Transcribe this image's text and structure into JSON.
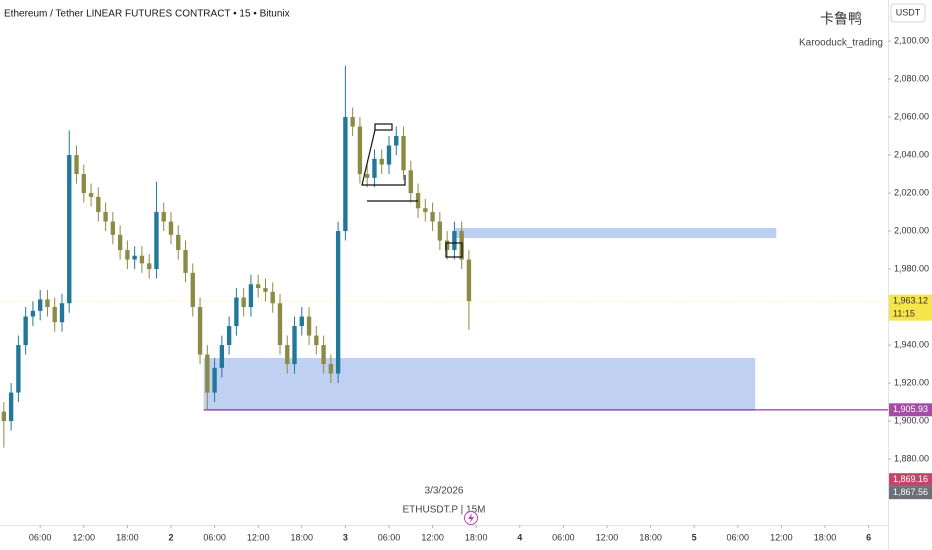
{
  "chart_data": {
    "type": "candlestick",
    "title": "Ethereum / Tether LINEAR FUTURES CONTRACT • 15 • Bitunix",
    "currency": "USDT",
    "watermark": {
      "symbol": "卡鲁鸭",
      "author": "Karooduck_trading"
    },
    "footer": {
      "date": "3/3/2026",
      "symbol": "ETHUSDT.P | 15M"
    },
    "up_color": "#22789a",
    "down_color": "#8b8b45",
    "x": [
      -23,
      -22,
      -21,
      -20,
      -19,
      -18,
      -17,
      -16,
      -15,
      -14,
      -13,
      -12,
      -11,
      -10,
      -9,
      -8,
      -7,
      -6,
      -5,
      -4,
      -3,
      -2,
      -1,
      0,
      1,
      2,
      3,
      4,
      5,
      6,
      7,
      8,
      9,
      10,
      11,
      12,
      13,
      14,
      15,
      16,
      17,
      18,
      19,
      20,
      21,
      22,
      23,
      24,
      25,
      26,
      27,
      28,
      29,
      30,
      31,
      32,
      33,
      34,
      35,
      36,
      37,
      38,
      39,
      40,
      41
    ],
    "open": [
      1905,
      1900,
      1915,
      1940,
      1955,
      1958,
      1964,
      1960,
      1952,
      1962,
      2040,
      2030,
      2020,
      2018,
      2010,
      2005,
      1998,
      1990,
      1985,
      1987,
      1983,
      1980,
      2010,
      2005,
      1998,
      1990,
      1978,
      1960,
      1935,
      1915,
      1928,
      1940,
      1950,
      1965,
      1960,
      1972,
      1970,
      1968,
      1962,
      1940,
      1930,
      1950,
      1955,
      1945,
      1940,
      1930,
      1925,
      2000,
      2060,
      2055,
      2030,
      2028,
      2038,
      2035,
      2045,
      2050,
      2032,
      2020,
      2012,
      2010,
      2005,
      1995,
      1990,
      2000,
      1985
    ],
    "high": [
      1910,
      1920,
      1945,
      1960,
      1963,
      1969,
      1969,
      1965,
      1967,
      2053,
      2045,
      2035,
      2025,
      2023,
      2015,
      2010,
      2003,
      1995,
      1992,
      1992,
      1988,
      2026,
      2015,
      2010,
      2003,
      1995,
      1983,
      1965,
      1940,
      1933,
      1945,
      1955,
      1970,
      1970,
      1977,
      1977,
      1975,
      1973,
      1967,
      1945,
      1955,
      1960,
      1960,
      1950,
      1945,
      1935,
      2005,
      2087,
      2065,
      2060,
      2035,
      2043,
      2043,
      2050,
      2055,
      2055,
      2037,
      2025,
      2017,
      2015,
      2010,
      2000,
      2005,
      2005,
      1990
    ],
    "low": [
      1886,
      1895,
      1910,
      1935,
      1950,
      1953,
      1955,
      1947,
      1947,
      1957,
      2025,
      2015,
      2013,
      2005,
      2000,
      1993,
      1985,
      1980,
      1980,
      1978,
      1975,
      1975,
      2000,
      1993,
      1985,
      1973,
      1955,
      1930,
      1906,
      1910,
      1923,
      1935,
      1945,
      1955,
      1955,
      1965,
      1963,
      1957,
      1935,
      1925,
      1925,
      1945,
      1940,
      1935,
      1925,
      1920,
      1920,
      1995,
      2050,
      2025,
      2023,
      2023,
      2030,
      2030,
      2040,
      2027,
      2015,
      2007,
      2005,
      2000,
      1990,
      1985,
      1985,
      1980,
      1948
    ],
    "close": [
      1900,
      1915,
      1940,
      1955,
      1958,
      1964,
      1960,
      1952,
      1962,
      2040,
      2030,
      2020,
      2018,
      2010,
      2005,
      1998,
      1990,
      1985,
      1987,
      1983,
      1980,
      2010,
      2005,
      1998,
      1990,
      1978,
      1960,
      1935,
      1915,
      1928,
      1940,
      1950,
      1965,
      1960,
      1972,
      1970,
      1968,
      1962,
      1940,
      1930,
      1950,
      1955,
      1945,
      1940,
      1930,
      1925,
      2000,
      2060,
      2055,
      2030,
      2028,
      2038,
      2035,
      2045,
      2050,
      2032,
      2020,
      2012,
      2010,
      2005,
      1995,
      1990,
      2000,
      1985,
      1963.12
    ],
    "xlim": [
      -23.53,
      98.67
    ],
    "xticks": [
      {
        "value": -18,
        "label": "06:00"
      },
      {
        "value": -12,
        "label": "12:00"
      },
      {
        "value": -6,
        "label": "18:00"
      },
      {
        "value": 0,
        "label": "2"
      },
      {
        "value": 6,
        "label": "06:00"
      },
      {
        "value": 12,
        "label": "12:00"
      },
      {
        "value": 18,
        "label": "18:00"
      },
      {
        "value": 24,
        "label": "3"
      },
      {
        "value": 30,
        "label": "06:00"
      },
      {
        "value": 36,
        "label": "12:00"
      },
      {
        "value": 42,
        "label": "18:00"
      },
      {
        "value": 48,
        "label": "4"
      },
      {
        "value": 54,
        "label": "06:00"
      },
      {
        "value": 60,
        "label": "12:00"
      },
      {
        "value": 66,
        "label": "18:00"
      },
      {
        "value": 72,
        "label": "5"
      },
      {
        "value": 78,
        "label": "06:00"
      },
      {
        "value": 84,
        "label": "12:00"
      },
      {
        "value": 90,
        "label": "18:00"
      },
      {
        "value": 96,
        "label": "6"
      }
    ],
    "ylim": [
      1845.3,
      2121.6
    ],
    "yticks": [
      {
        "value": 2100,
        "label": "2,100.00"
      },
      {
        "value": 2080,
        "label": "2,080.00"
      },
      {
        "value": 2060,
        "label": "2,060.00"
      },
      {
        "value": 2040,
        "label": "2,040.00"
      },
      {
        "value": 2020,
        "label": "2,020.00"
      },
      {
        "value": 2000,
        "label": "2,000.00"
      },
      {
        "value": 1980,
        "label": "1,980.00"
      },
      {
        "value": 1940,
        "label": "1,940.00"
      },
      {
        "value": 1920,
        "label": "1,920.00"
      },
      {
        "value": 1900,
        "label": "1,900.00"
      },
      {
        "value": 1880,
        "label": "1,880.00"
      }
    ],
    "zones": [
      {
        "from_x": 39.1,
        "to_x": 83.3,
        "low": 1996.3,
        "high": 2001.6,
        "color": "#b6c9f2"
      },
      {
        "from_x": 4.5,
        "to_x": 80.4,
        "low": 1905.3,
        "high": 1933.2,
        "color": "#b9cbf2"
      }
    ],
    "levels": [
      {
        "value": 1963.12,
        "label": "1,963.12",
        "countdown": "11:15",
        "color": "#f5e44a",
        "text_color": "#333333",
        "line": "dotted",
        "line_from": -23.53
      },
      {
        "value": 1905.93,
        "label": "1,905.93",
        "color": "#a64ca6",
        "text_color": "#ffffff",
        "line": "solid",
        "line_from": 4.5
      },
      {
        "value": 1869.16,
        "label": "1,869.16",
        "color": "#c2476a",
        "text_color": "#ffffff"
      },
      {
        "value": 1867.56,
        "label": "1,867.56",
        "color": "#6b6f78",
        "text_color": "#ffffff"
      }
    ]
  }
}
